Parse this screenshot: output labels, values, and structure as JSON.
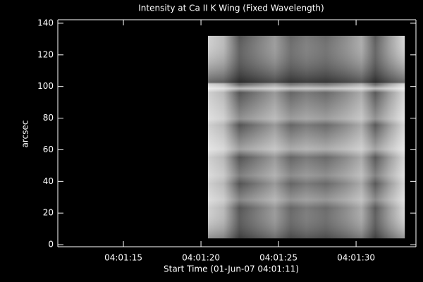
{
  "chart_data": {
    "type": "image",
    "title": "Intensity at Ca II K Wing (Fixed Wavelength)",
    "x_label": "Start Time (01-Jun-07 04:01:11)",
    "y_label": "arcsec",
    "xlim": [
      -0.23,
      22.86
    ],
    "xticks": [
      {
        "value": 4,
        "label": "04:01:15"
      },
      {
        "value": 9,
        "label": "04:01:20"
      },
      {
        "value": 14,
        "label": "04:01:25"
      },
      {
        "value": 19,
        "label": "04:01:30"
      }
    ],
    "ylim": [
      -1.3,
      142.2
    ],
    "yticks": [
      0,
      20,
      40,
      60,
      80,
      100,
      120,
      140
    ],
    "image_extent": {
      "x": [
        9.45,
        22.14
      ],
      "y": [
        4,
        132
      ]
    },
    "color": "#ffffff"
  }
}
